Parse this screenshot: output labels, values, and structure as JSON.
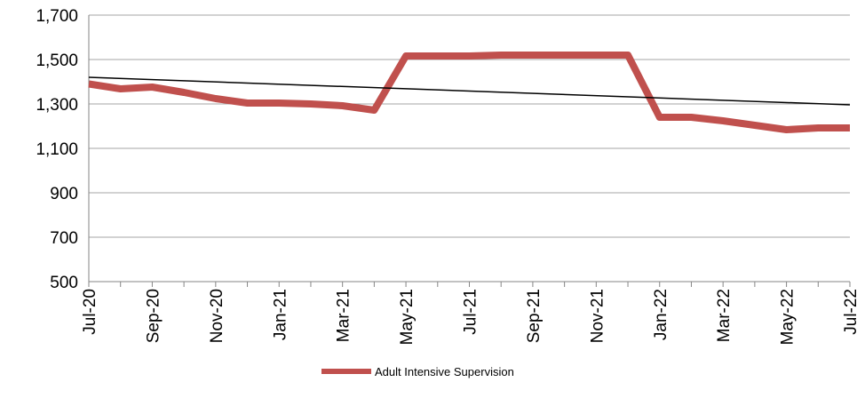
{
  "chart_data": {
    "type": "line",
    "categories": [
      "Jul-20",
      null,
      "Sep-20",
      null,
      "Nov-20",
      null,
      "Jan-21",
      null,
      "Mar-21",
      null,
      "May-21",
      null,
      "Jul-21",
      null,
      "Sep-21",
      null,
      "Nov-21",
      null,
      "Jan-22",
      null,
      "Mar-22",
      null,
      "May-22",
      null,
      "Jul-22"
    ],
    "series": [
      {
        "name": "Adult Intensive Supervision",
        "color": "#c0504d",
        "values": [
          1390,
          1368,
          1376,
          1352,
          1324,
          1304,
          1304,
          1300,
          1292,
          1272,
          1516,
          1516,
          1516,
          1520,
          1520,
          1520,
          1520,
          1520,
          1240,
          1240,
          1224,
          1204,
          1184,
          1192,
          1192
        ]
      }
    ],
    "trendline": {
      "color": "#000000",
      "values": [
        1420,
        1296
      ]
    },
    "ylim": [
      500,
      1700
    ],
    "yticks": [
      500,
      700,
      900,
      {
        "value": 1100,
        "label": "1,100"
      },
      {
        "value": 1300,
        "label": "1,300"
      },
      {
        "value": 1500,
        "label": "1,500"
      },
      {
        "value": 1700,
        "label": "1,700"
      }
    ],
    "grid": true,
    "legend": "bottom"
  }
}
